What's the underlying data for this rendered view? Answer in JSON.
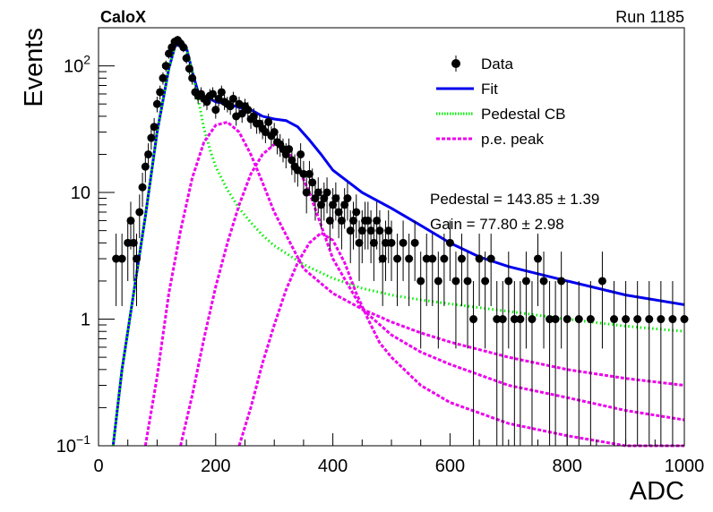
{
  "header": {
    "left_label": "CaloX",
    "right_label": "Run 1185"
  },
  "legend": {
    "items": [
      {
        "label": "Data",
        "style": "marker"
      },
      {
        "label": "Fit",
        "style": "solid"
      },
      {
        "label": "Pedestal CB",
        "style": "dotted"
      },
      {
        "label": "p.e. peak",
        "style": "dashed"
      }
    ]
  },
  "fit_results": {
    "line1": "Pedestal = 143.85 ± 1.39",
    "line2": "Gain = 77.80 ± 2.98"
  },
  "colors": {
    "data": "#000000",
    "fit": "#0000ee",
    "pedestal": "#00ee00",
    "pe_peak": "#ee00ee"
  },
  "chart_data": {
    "type": "scatter",
    "xlabel": "ADC",
    "ylabel": "Events",
    "xlim": [
      0,
      1000
    ],
    "ylim": [
      0.1,
      200
    ],
    "y_scale": "log",
    "x_ticks": [
      0,
      200,
      400,
      600,
      800,
      1000
    ],
    "y_ticks": [
      {
        "value": 0.1,
        "label": "10",
        "sup": "−1"
      },
      {
        "value": 1,
        "label": "1",
        "sup": ""
      },
      {
        "value": 10,
        "label": "10",
        "sup": ""
      },
      {
        "value": 100,
        "label": "10",
        "sup": "2"
      }
    ],
    "grid": false,
    "legend_position": "top-right",
    "series": [
      {
        "name": "Data",
        "kind": "points_with_errors",
        "x": [
          30,
          40,
          50,
          55,
          60,
          65,
          70,
          75,
          80,
          85,
          90,
          95,
          100,
          105,
          110,
          115,
          120,
          125,
          130,
          135,
          140,
          145,
          150,
          155,
          160,
          165,
          170,
          175,
          180,
          185,
          190,
          195,
          200,
          205,
          210,
          215,
          220,
          225,
          230,
          235,
          240,
          245,
          250,
          255,
          260,
          265,
          270,
          275,
          280,
          285,
          290,
          295,
          300,
          305,
          310,
          315,
          320,
          325,
          330,
          335,
          340,
          345,
          350,
          355,
          360,
          365,
          370,
          375,
          380,
          385,
          390,
          395,
          400,
          405,
          410,
          415,
          420,
          425,
          430,
          435,
          440,
          445,
          450,
          455,
          460,
          465,
          470,
          475,
          480,
          485,
          490,
          495,
          500,
          510,
          520,
          530,
          540,
          550,
          560,
          570,
          580,
          590,
          600,
          610,
          620,
          630,
          640,
          650,
          660,
          670,
          680,
          690,
          700,
          710,
          720,
          730,
          740,
          750,
          760,
          770,
          780,
          790,
          800,
          820,
          840,
          860,
          880,
          900,
          920,
          940,
          960,
          980,
          1000
        ],
        "y": [
          3,
          3,
          4,
          6,
          4,
          3,
          7,
          11,
          16,
          20,
          27,
          33,
          50,
          62,
          80,
          100,
          125,
          140,
          155,
          160,
          150,
          140,
          115,
          95,
          80,
          62,
          58,
          60,
          55,
          52,
          58,
          60,
          45,
          55,
          62,
          52,
          50,
          48,
          55,
          40,
          50,
          42,
          48,
          45,
          38,
          40,
          35,
          35,
          32,
          30,
          36,
          28,
          30,
          25,
          24,
          22,
          20,
          22,
          18,
          16,
          15,
          20,
          14,
          10,
          14,
          12,
          9,
          10,
          8,
          9,
          10,
          6,
          8,
          9,
          7,
          6,
          8,
          9,
          5,
          6,
          7,
          4,
          5,
          6,
          6,
          5,
          4,
          6,
          5,
          3,
          4,
          5,
          4,
          3,
          4,
          3,
          4,
          2,
          3,
          3,
          2,
          3,
          4,
          2,
          3,
          2,
          1,
          3,
          2,
          3,
          1,
          1,
          2,
          1,
          1,
          2,
          1,
          3,
          2,
          1,
          1,
          2,
          1,
          1,
          1,
          2,
          1,
          1,
          1,
          1,
          1,
          1,
          1
        ],
        "y_err": "poisson"
      },
      {
        "name": "Fit",
        "kind": "curve",
        "x": [
          25,
          40,
          60,
          80,
          100,
          120,
          130,
          140,
          150,
          160,
          170,
          180,
          190,
          200,
          220,
          240,
          260,
          280,
          300,
          320,
          340,
          360,
          380,
          400,
          450,
          500,
          550,
          600,
          650,
          700,
          800,
          900,
          1000
        ],
        "y": [
          0.1,
          0.4,
          1.6,
          6.5,
          30,
          95,
          140,
          160,
          140,
          90,
          62,
          57,
          55,
          52,
          50,
          47,
          45,
          40,
          38,
          37,
          33,
          26,
          20,
          15,
          10,
          7.5,
          5.5,
          4,
          3.1,
          2.6,
          2,
          1.55,
          1.3
        ]
      },
      {
        "name": "Pedestal CB",
        "kind": "curve",
        "x": [
          25,
          40,
          60,
          80,
          100,
          120,
          130,
          140,
          150,
          160,
          170,
          180,
          190,
          200,
          220,
          240,
          260,
          280,
          300,
          350,
          400,
          450,
          500,
          550,
          600,
          700,
          800,
          900,
          1000
        ],
        "y": [
          0.1,
          0.4,
          1.6,
          6.5,
          30,
          95,
          140,
          160,
          140,
          90,
          55,
          32,
          22,
          16,
          10.5,
          7.5,
          5.8,
          4.6,
          3.8,
          2.7,
          2.1,
          1.75,
          1.55,
          1.42,
          1.32,
          1.15,
          1.0,
          0.88,
          0.8
        ]
      },
      {
        "name": "p.e. peak 1",
        "kind": "curve",
        "x": [
          80,
          100,
          120,
          140,
          160,
          180,
          200,
          220,
          240,
          260,
          280,
          300,
          350,
          400,
          450,
          500,
          550,
          600,
          700,
          800,
          900,
          1000
        ],
        "y": [
          0.1,
          0.35,
          1.6,
          5,
          13,
          25,
          34,
          36,
          30,
          20,
          12,
          7,
          2.5,
          1.6,
          1.2,
          0.95,
          0.78,
          0.66,
          0.5,
          0.4,
          0.34,
          0.3
        ]
      },
      {
        "name": "p.e. peak 2",
        "kind": "curve",
        "x": [
          140,
          160,
          180,
          200,
          220,
          240,
          260,
          280,
          300,
          320,
          340,
          360,
          380,
          400,
          450,
          500,
          550,
          600,
          700,
          800,
          900,
          1000
        ],
        "y": [
          0.1,
          0.25,
          0.7,
          1.8,
          4,
          8,
          14,
          20,
          24,
          22,
          16,
          10,
          5.5,
          3,
          1.2,
          0.75,
          0.55,
          0.44,
          0.3,
          0.24,
          0.19,
          0.16
        ]
      },
      {
        "name": "p.e. peak 3",
        "kind": "curve",
        "x": [
          240,
          260,
          280,
          300,
          320,
          340,
          360,
          380,
          400,
          420,
          440,
          460,
          480,
          500,
          550,
          600,
          700,
          800,
          900,
          1000
        ],
        "y": [
          0.1,
          0.2,
          0.45,
          0.9,
          1.7,
          2.8,
          4,
          4.8,
          4.2,
          2.8,
          1.6,
          1,
          0.65,
          0.5,
          0.3,
          0.22,
          0.15,
          0.12,
          0.1,
          0.09
        ]
      }
    ]
  }
}
